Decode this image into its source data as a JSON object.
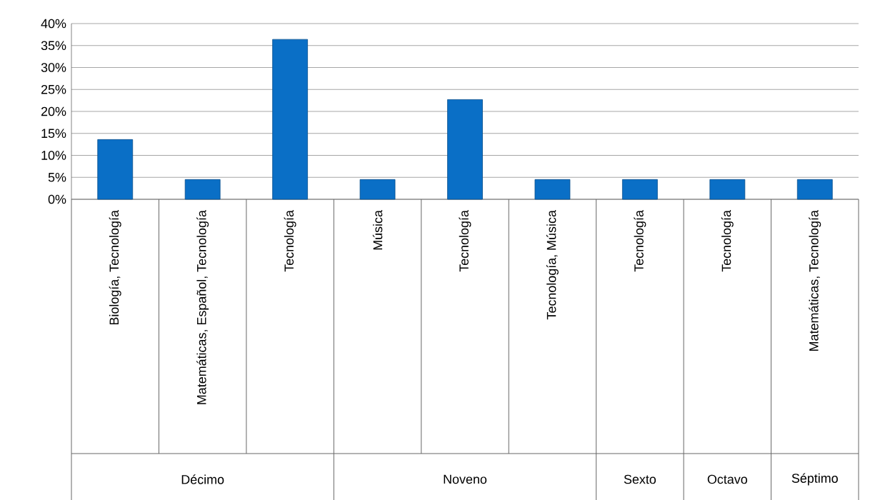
{
  "chart_data": {
    "type": "bar",
    "categories": [
      "Biología, Tecnología",
      "Matemáticas, Español, Tecnología",
      "Tecnología",
      "Música",
      "Tecnología",
      "Tecnología, Música",
      "Tecnología",
      "Tecnología",
      "Matemáticas, Tecnología"
    ],
    "values": [
      13.6,
      4.5,
      36.4,
      4.5,
      22.7,
      4.5,
      4.5,
      4.5,
      4.5
    ],
    "color": "#0a6fc6",
    "ylim": [
      0,
      40
    ],
    "yticks": [
      {
        "value": 0,
        "label": "0%"
      },
      {
        "value": 5,
        "label": "5%"
      },
      {
        "value": 10,
        "label": "10%"
      },
      {
        "value": 15,
        "label": "15%"
      },
      {
        "value": 20,
        "label": "20%"
      },
      {
        "value": 25,
        "label": "25%"
      },
      {
        "value": 30,
        "label": "30%"
      },
      {
        "value": 35,
        "label": "35%"
      },
      {
        "value": 40,
        "label": "40%"
      }
    ],
    "grid": "y",
    "annotations": [
      "Décimo",
      "Noveno",
      "Sexto",
      "Octavo",
      "Séptimo"
    ]
  }
}
